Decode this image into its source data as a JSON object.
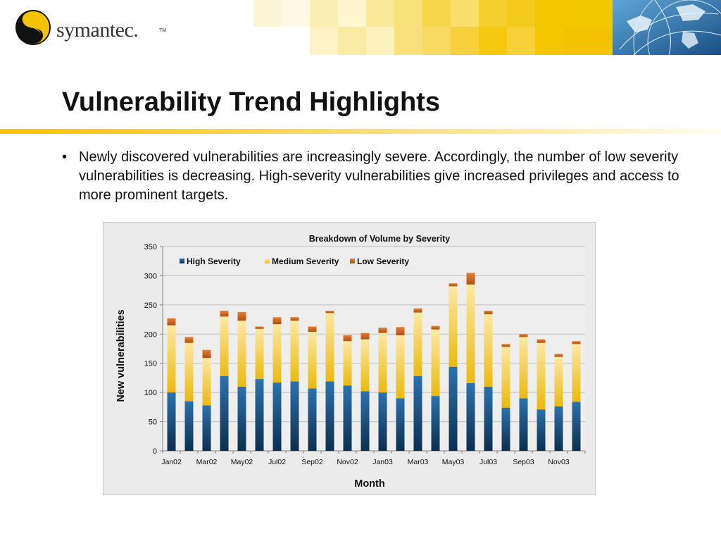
{
  "brand": {
    "name": "symantec.",
    "tm": "TM"
  },
  "slide": {
    "title": "Vulnerability Trend Highlights",
    "bullet": "Newly discovered vulnerabilities are increasingly severe. Accordingly, the number of low severity vulnerabilities is decreasing.  High-severity vulnerabilities give increased privileges and access to more prominent targets."
  },
  "colors": {
    "high": "#1f5f95",
    "medium": "#f2c51c",
    "low": "#d4661c",
    "brand_yellow": "#f5c400",
    "grid": "#bfbfbf"
  },
  "chart_data": {
    "type": "bar",
    "stacked": true,
    "title": "Breakdown of Volume by Severity",
    "xlabel": "Month",
    "ylabel": "New vulnerabilities",
    "ylim": [
      0,
      350
    ],
    "yticks": [
      0,
      50,
      100,
      150,
      200,
      250,
      300,
      350
    ],
    "legend_placement": "top-left",
    "grid": true,
    "categories": [
      "Jan02",
      "Feb02",
      "Mar02",
      "Apr02",
      "May02",
      "Jun02",
      "Jul02",
      "Aug02",
      "Sep02",
      "Oct02",
      "Nov02",
      "Dec02",
      "Jan03",
      "Feb03",
      "Mar03",
      "Apr03",
      "May03",
      "Jun03",
      "Jul03",
      "Aug03",
      "Sep03",
      "Oct03",
      "Nov03",
      "Dec03"
    ],
    "tick_labels": [
      "Jan02",
      "",
      "Mar02",
      "",
      "May02",
      "",
      "Jul02",
      "",
      "Sep02",
      "",
      "Nov02",
      "",
      "Jan03",
      "",
      "Mar03",
      "",
      "May03",
      "",
      "Jul03",
      "",
      "Sep03",
      "",
      "Nov03",
      ""
    ],
    "series": [
      {
        "name": "High Severity",
        "color": "#1f5f95",
        "values": [
          100,
          85,
          78,
          128,
          110,
          123,
          117,
          119,
          107,
          119,
          112,
          102,
          100,
          90,
          128,
          94,
          144,
          116,
          110,
          74,
          90,
          71,
          76,
          84
        ]
      },
      {
        "name": "Medium Severity",
        "color": "#f2c51c",
        "values": [
          115,
          100,
          81,
          102,
          113,
          86,
          100,
          104,
          97,
          117,
          76,
          89,
          102,
          108,
          109,
          114,
          138,
          169,
          124,
          104,
          105,
          114,
          85,
          99
        ]
      },
      {
        "name": "Low Severity",
        "color": "#d4661c",
        "values": [
          12,
          10,
          14,
          10,
          15,
          4,
          12,
          6,
          9,
          4,
          10,
          11,
          9,
          14,
          7,
          6,
          5,
          20,
          6,
          5,
          5,
          6,
          5,
          5
        ]
      }
    ]
  }
}
